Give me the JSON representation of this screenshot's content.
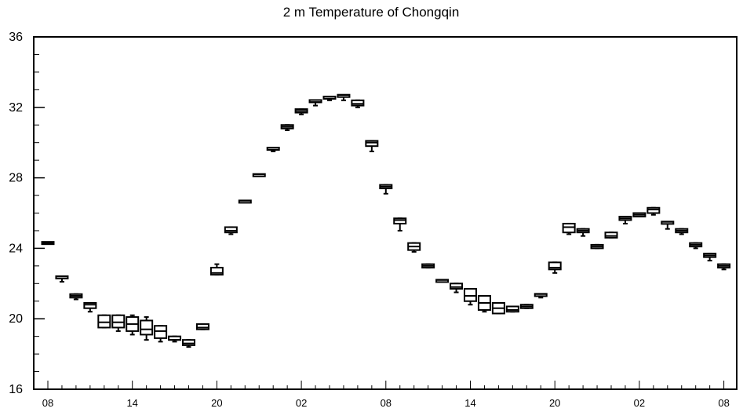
{
  "chart_data": {
    "type": "boxplot",
    "title": "2 m Temperature of Chongqin",
    "xlabel": "",
    "ylabel": "",
    "ylim": [
      16,
      36
    ],
    "y_ticks": [
      "16",
      "20",
      "24",
      "28",
      "32",
      "36"
    ],
    "x_tick_labels": [
      "08",
      "14",
      "20",
      "02",
      "08",
      "14",
      "20",
      "02",
      "08"
    ],
    "x_tick_hours": [
      0,
      6,
      12,
      18,
      24,
      30,
      36,
      42,
      48
    ],
    "grid": false,
    "series": [
      {
        "hour": 0,
        "whisker_low": 24.3,
        "q1": 24.3,
        "median": 24.3,
        "q3": 24.3,
        "whisker_high": 24.3
      },
      {
        "hour": 1,
        "whisker_low": 22.1,
        "q1": 22.3,
        "median": 22.4,
        "q3": 22.4,
        "whisker_high": 22.4
      },
      {
        "hour": 2,
        "whisker_low": 21.1,
        "q1": 21.2,
        "median": 21.3,
        "q3": 21.4,
        "whisker_high": 21.4
      },
      {
        "hour": 3,
        "whisker_low": 20.4,
        "q1": 20.6,
        "median": 20.8,
        "q3": 20.9,
        "whisker_high": 20.9
      },
      {
        "hour": 4,
        "whisker_low": 19.5,
        "q1": 19.5,
        "median": 19.8,
        "q3": 20.2,
        "whisker_high": 20.2
      },
      {
        "hour": 5,
        "whisker_low": 19.3,
        "q1": 19.5,
        "median": 19.8,
        "q3": 20.2,
        "whisker_high": 20.2
      },
      {
        "hour": 6,
        "whisker_low": 19.1,
        "q1": 19.3,
        "median": 19.7,
        "q3": 20.1,
        "whisker_high": 20.2
      },
      {
        "hour": 7,
        "whisker_low": 18.8,
        "q1": 19.1,
        "median": 19.4,
        "q3": 19.9,
        "whisker_high": 20.1
      },
      {
        "hour": 8,
        "whisker_low": 18.7,
        "q1": 18.9,
        "median": 19.3,
        "q3": 19.6,
        "whisker_high": 19.6
      },
      {
        "hour": 9,
        "whisker_low": 18.7,
        "q1": 18.8,
        "median": 18.8,
        "q3": 19.0,
        "whisker_high": 19.0
      },
      {
        "hour": 10,
        "whisker_low": 18.4,
        "q1": 18.5,
        "median": 18.6,
        "q3": 18.8,
        "whisker_high": 18.8
      },
      {
        "hour": 11,
        "whisker_low": 19.4,
        "q1": 19.4,
        "median": 19.5,
        "q3": 19.7,
        "whisker_high": 19.7
      },
      {
        "hour": 12,
        "whisker_low": 22.5,
        "q1": 22.5,
        "median": 22.6,
        "q3": 22.9,
        "whisker_high": 23.1
      },
      {
        "hour": 13,
        "whisker_low": 24.8,
        "q1": 24.9,
        "median": 25.0,
        "q3": 25.2,
        "whisker_high": 25.2
      },
      {
        "hour": 14,
        "whisker_low": 26.6,
        "q1": 26.6,
        "median": 26.7,
        "q3": 26.7,
        "whisker_high": 26.7
      },
      {
        "hour": 15,
        "whisker_low": 28.1,
        "q1": 28.1,
        "median": 28.2,
        "q3": 28.2,
        "whisker_high": 28.2
      },
      {
        "hour": 16,
        "whisker_low": 29.5,
        "q1": 29.6,
        "median": 29.6,
        "q3": 29.7,
        "whisker_high": 29.7
      },
      {
        "hour": 17,
        "whisker_low": 30.7,
        "q1": 30.8,
        "median": 30.9,
        "q3": 31.0,
        "whisker_high": 31.0
      },
      {
        "hour": 18,
        "whisker_low": 31.6,
        "q1": 31.7,
        "median": 31.8,
        "q3": 31.9,
        "whisker_high": 31.9
      },
      {
        "hour": 19,
        "whisker_low": 32.1,
        "q1": 32.3,
        "median": 32.3,
        "q3": 32.4,
        "whisker_high": 32.4
      },
      {
        "hour": 20,
        "whisker_low": 32.4,
        "q1": 32.5,
        "median": 32.6,
        "q3": 32.6,
        "whisker_high": 32.6
      },
      {
        "hour": 21,
        "whisker_low": 32.4,
        "q1": 32.6,
        "median": 32.7,
        "q3": 32.7,
        "whisker_high": 32.7
      },
      {
        "hour": 22,
        "whisker_low": 32.0,
        "q1": 32.1,
        "median": 32.2,
        "q3": 32.4,
        "whisker_high": 32.4
      },
      {
        "hour": 23,
        "whisker_low": 29.5,
        "q1": 29.8,
        "median": 30.0,
        "q3": 30.1,
        "whisker_high": 30.1
      },
      {
        "hour": 24,
        "whisker_low": 27.1,
        "q1": 27.4,
        "median": 27.5,
        "q3": 27.6,
        "whisker_high": 27.6
      },
      {
        "hour": 25,
        "whisker_low": 25.0,
        "q1": 25.4,
        "median": 25.6,
        "q3": 25.7,
        "whisker_high": 25.7
      },
      {
        "hour": 26,
        "whisker_low": 23.8,
        "q1": 23.9,
        "median": 24.1,
        "q3": 24.3,
        "whisker_high": 24.3
      },
      {
        "hour": 27,
        "whisker_low": 22.9,
        "q1": 22.9,
        "median": 23.0,
        "q3": 23.1,
        "whisker_high": 23.1
      },
      {
        "hour": 28,
        "whisker_low": 22.1,
        "q1": 22.1,
        "median": 22.2,
        "q3": 22.2,
        "whisker_high": 22.2
      },
      {
        "hour": 29,
        "whisker_low": 21.5,
        "q1": 21.7,
        "median": 21.8,
        "q3": 22.0,
        "whisker_high": 22.0
      },
      {
        "hour": 30,
        "whisker_low": 20.8,
        "q1": 21.0,
        "median": 21.3,
        "q3": 21.7,
        "whisker_high": 21.7
      },
      {
        "hour": 31,
        "whisker_low": 20.4,
        "q1": 20.5,
        "median": 20.9,
        "q3": 21.3,
        "whisker_high": 21.3
      },
      {
        "hour": 32,
        "whisker_low": 20.3,
        "q1": 20.3,
        "median": 20.6,
        "q3": 20.9,
        "whisker_high": 20.9
      },
      {
        "hour": 33,
        "whisker_low": 20.4,
        "q1": 20.4,
        "median": 20.5,
        "q3": 20.7,
        "whisker_high": 20.7
      },
      {
        "hour": 34,
        "whisker_low": 20.6,
        "q1": 20.6,
        "median": 20.7,
        "q3": 20.8,
        "whisker_high": 20.8
      },
      {
        "hour": 35,
        "whisker_low": 21.2,
        "q1": 21.3,
        "median": 21.4,
        "q3": 21.4,
        "whisker_high": 21.4
      },
      {
        "hour": 36,
        "whisker_low": 22.6,
        "q1": 22.8,
        "median": 22.9,
        "q3": 23.2,
        "whisker_high": 23.2
      },
      {
        "hour": 37,
        "whisker_low": 24.8,
        "q1": 24.9,
        "median": 25.2,
        "q3": 25.4,
        "whisker_high": 25.4
      },
      {
        "hour": 38,
        "whisker_low": 24.7,
        "q1": 24.9,
        "median": 25.0,
        "q3": 25.1,
        "whisker_high": 25.1
      },
      {
        "hour": 39,
        "whisker_low": 24.0,
        "q1": 24.0,
        "median": 24.1,
        "q3": 24.2,
        "whisker_high": 24.2
      },
      {
        "hour": 40,
        "whisker_low": 24.6,
        "q1": 24.6,
        "median": 24.7,
        "q3": 24.9,
        "whisker_high": 24.9
      },
      {
        "hour": 41,
        "whisker_low": 25.4,
        "q1": 25.6,
        "median": 25.7,
        "q3": 25.8,
        "whisker_high": 25.8
      },
      {
        "hour": 42,
        "whisker_low": 25.8,
        "q1": 25.8,
        "median": 25.9,
        "q3": 26.0,
        "whisker_high": 26.0
      },
      {
        "hour": 43,
        "whisker_low": 25.9,
        "q1": 26.0,
        "median": 26.2,
        "q3": 26.3,
        "whisker_high": 26.3
      },
      {
        "hour": 44,
        "whisker_low": 25.1,
        "q1": 25.4,
        "median": 25.5,
        "q3": 25.5,
        "whisker_high": 25.5
      },
      {
        "hour": 45,
        "whisker_low": 24.8,
        "q1": 24.9,
        "median": 25.0,
        "q3": 25.1,
        "whisker_high": 25.1
      },
      {
        "hour": 46,
        "whisker_low": 24.0,
        "q1": 24.1,
        "median": 24.2,
        "q3": 24.3,
        "whisker_high": 24.3
      },
      {
        "hour": 47,
        "whisker_low": 23.3,
        "q1": 23.5,
        "median": 23.6,
        "q3": 23.7,
        "whisker_high": 23.7
      },
      {
        "hour": 48,
        "whisker_low": 22.8,
        "q1": 22.9,
        "median": 23.0,
        "q3": 23.1,
        "whisker_high": 23.1
      }
    ]
  }
}
